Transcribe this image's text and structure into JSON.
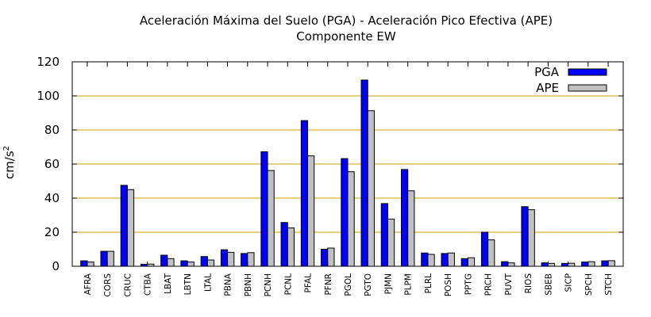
{
  "chart_data": {
    "type": "bar",
    "title": "Aceleración Máxima del Suelo (PGA) -  Aceleración Pico Efectiva (APE)",
    "subtitle": "Componente EW",
    "ylabel": "cm/s",
    "ylabel_superscript": "2",
    "xlabel": "",
    "ylim": [
      0,
      120
    ],
    "yticks": [
      0,
      20,
      40,
      60,
      80,
      100,
      120
    ],
    "grid": "horizontal",
    "grid_color": "#c8a000",
    "legend_position": "top-right",
    "categories": [
      "AFRA",
      "CORS",
      "CRUC",
      "CTBA",
      "LBAT",
      "LBTN",
      "LTAL",
      "PBNA",
      "PBNH",
      "PCNH",
      "PCNL",
      "PFAL",
      "PFNR",
      "PGOL",
      "PGTO",
      "PJMN",
      "PLPM",
      "PLRL",
      "POSH",
      "PPTG",
      "PRCH",
      "PUVT",
      "RIOS",
      "SBEB",
      "SICP",
      "SPCH",
      "STCH"
    ],
    "series": [
      {
        "name": "PGA",
        "color": "#0000ff",
        "values": [
          3.2,
          8.8,
          47.5,
          1.2,
          6.5,
          3.2,
          5.7,
          9.7,
          7.5,
          67.2,
          25.7,
          85.5,
          10.0,
          63.2,
          109.3,
          36.8,
          56.8,
          7.8,
          7.5,
          4.5,
          20.0,
          2.7,
          35.0,
          2.0,
          1.7,
          2.5,
          3.2
        ]
      },
      {
        "name": "APE",
        "color": "#c0c0c0",
        "values": [
          2.5,
          8.8,
          45.0,
          1.3,
          4.5,
          2.5,
          3.7,
          8.2,
          8.0,
          56.2,
          22.5,
          64.8,
          10.7,
          55.5,
          91.3,
          27.7,
          44.3,
          7.0,
          7.8,
          5.0,
          15.5,
          2.0,
          33.2,
          1.7,
          1.8,
          2.7,
          3.3
        ]
      }
    ]
  }
}
